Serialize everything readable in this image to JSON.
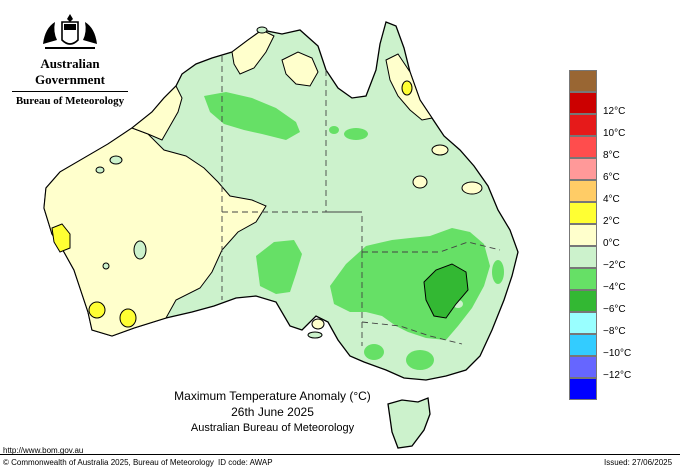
{
  "header": {
    "government": "Australian Government",
    "bureau": "Bureau of Meteorology"
  },
  "title": {
    "line1": "Maximum Temperature Anomaly (°C)",
    "line2": "26th June 2025",
    "line3": "Australian Bureau of Meteorology"
  },
  "legend": [
    {
      "label": "",
      "color": "#996633"
    },
    {
      "label": "12°C",
      "color": "#cc0000"
    },
    {
      "label": "10°C",
      "color": "#e61a1a"
    },
    {
      "label": "8°C",
      "color": "#ff4d4d"
    },
    {
      "label": "6°C",
      "color": "#ff9999"
    },
    {
      "label": "4°C",
      "color": "#ffcc66"
    },
    {
      "label": "2°C",
      "color": "#ffff33"
    },
    {
      "label": "0°C",
      "color": "#ffffcc"
    },
    {
      "label": "−2°C",
      "color": "#ccf2cc"
    },
    {
      "label": "−4°C",
      "color": "#66e066"
    },
    {
      "label": "−6°C",
      "color": "#33b833"
    },
    {
      "label": "−8°C",
      "color": "#99ffff"
    },
    {
      "label": "−10°C",
      "color": "#33ccff"
    },
    {
      "label": "−12°C",
      "color": "#6666ff"
    },
    {
      "label": "",
      "color": "#0000ff"
    }
  ],
  "footer": {
    "url": "http://www.bom.gov.au",
    "copyright": "© Commonwealth of Australia 2025, Bureau of Meteorology",
    "id_code": "ID code: AWAP",
    "issued": "Issued: 27/06/2025"
  },
  "colors": {
    "ocean": "#ffffff",
    "neg2": "#ccf2cc",
    "neg4": "#66e066",
    "neg6": "#33b833",
    "zero": "#ffffcc",
    "pos2": "#ffff33",
    "outline": "#000000"
  }
}
